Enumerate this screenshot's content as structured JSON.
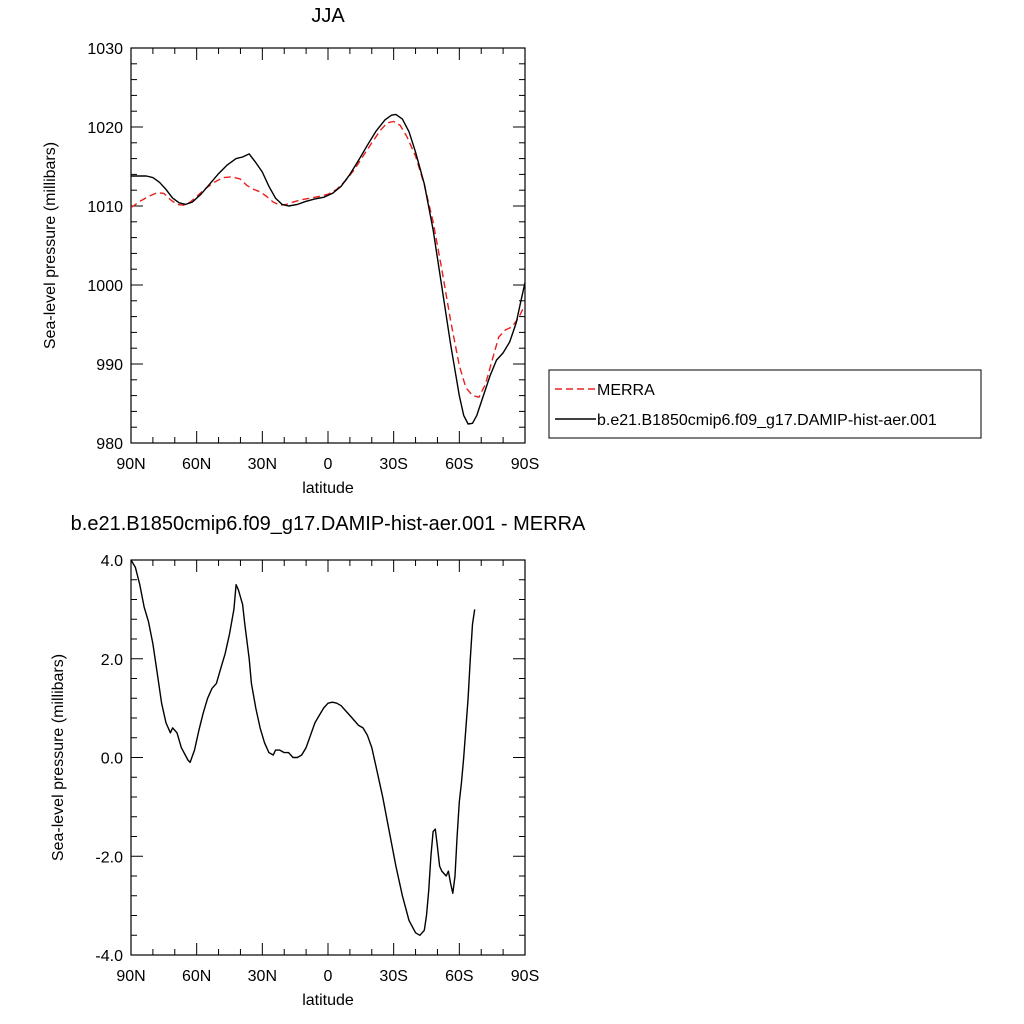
{
  "chart_data": [
    {
      "type": "line",
      "title": "JJA",
      "xlabel": "latitude",
      "ylabel": "Sea-level pressure (millibars)",
      "xlim": [
        90,
        -90
      ],
      "ylim": [
        980,
        1030
      ],
      "x_ticks": [
        90,
        60,
        30,
        0,
        -30,
        -60,
        -90
      ],
      "x_tick_labels": [
        "90N",
        "60N",
        "30N",
        "0",
        "30S",
        "60S",
        "90S"
      ],
      "y_ticks": [
        980,
        990,
        1000,
        1010,
        1020,
        1030
      ],
      "y_tick_labels": [
        "980",
        "990",
        "1000",
        "1010",
        "1020",
        "1030"
      ],
      "legend_position": "outside-right",
      "series": [
        {
          "name": "MERRA",
          "color": "#e8201e",
          "dashed": true,
          "points": [
            [
              90,
              1009.8
            ],
            [
              86,
              1010.6
            ],
            [
              82,
              1011.2
            ],
            [
              78,
              1011.7
            ],
            [
              75,
              1011.6
            ],
            [
              72,
              1010.8
            ],
            [
              69,
              1010.2
            ],
            [
              66,
              1010.1
            ],
            [
              63,
              1010.5
            ],
            [
              60,
              1011.2
            ],
            [
              56,
              1012.2
            ],
            [
              52,
              1013.0
            ],
            [
              48,
              1013.6
            ],
            [
              44,
              1013.7
            ],
            [
              40,
              1013.4
            ],
            [
              37,
              1012.6
            ],
            [
              34,
              1012.1
            ],
            [
              31,
              1011.8
            ],
            [
              28,
              1011.2
            ],
            [
              25,
              1010.5
            ],
            [
              22,
              1010.1
            ],
            [
              19,
              1010.2
            ],
            [
              16,
              1010.5
            ],
            [
              12,
              1010.8
            ],
            [
              8,
              1011.0
            ],
            [
              4,
              1011.2
            ],
            [
              0,
              1011.5
            ],
            [
              -4,
              1012.1
            ],
            [
              -8,
              1013.2
            ],
            [
              -12,
              1014.6
            ],
            [
              -16,
              1016.3
            ],
            [
              -20,
              1018.0
            ],
            [
              -24,
              1019.6
            ],
            [
              -27,
              1020.5
            ],
            [
              -30,
              1020.7
            ],
            [
              -33,
              1020.2
            ],
            [
              -36,
              1018.8
            ],
            [
              -40,
              1016.3
            ],
            [
              -44,
              1012.7
            ],
            [
              -48,
              1008.0
            ],
            [
              -52,
              1002.0
            ],
            [
              -56,
              995.5
            ],
            [
              -60,
              989.8
            ],
            [
              -63,
              987.0
            ],
            [
              -66,
              986.0
            ],
            [
              -69,
              985.8
            ],
            [
              -72,
              987.5
            ],
            [
              -75,
              990.5
            ],
            [
              -78,
              993.4
            ],
            [
              -81,
              994.3
            ],
            [
              -84,
              994.7
            ],
            [
              -87,
              995.8
            ],
            [
              -90,
              997.5
            ]
          ]
        },
        {
          "name": "b.e21.B1850cmip6.f09_g17.DAMIP-hist-aer.001",
          "color": "#000000",
          "dashed": false,
          "points": [
            [
              90,
              1013.8
            ],
            [
              86,
              1013.8
            ],
            [
              83,
              1013.8
            ],
            [
              80,
              1013.6
            ],
            [
              77,
              1013.0
            ],
            [
              74,
              1012.1
            ],
            [
              71,
              1011.0
            ],
            [
              68,
              1010.4
            ],
            [
              65,
              1010.2
            ],
            [
              62,
              1010.5
            ],
            [
              58,
              1011.5
            ],
            [
              54,
              1012.8
            ],
            [
              50,
              1014.1
            ],
            [
              46,
              1015.2
            ],
            [
              42,
              1016.0
            ],
            [
              39,
              1016.2
            ],
            [
              36,
              1016.6
            ],
            [
              33,
              1015.5
            ],
            [
              30,
              1014.3
            ],
            [
              27,
              1012.5
            ],
            [
              24,
              1011.0
            ],
            [
              21,
              1010.2
            ],
            [
              18,
              1010.0
            ],
            [
              14,
              1010.2
            ],
            [
              10,
              1010.6
            ],
            [
              6,
              1010.9
            ],
            [
              2,
              1011.1
            ],
            [
              -2,
              1011.6
            ],
            [
              -6,
              1012.5
            ],
            [
              -10,
              1014.0
            ],
            [
              -14,
              1015.8
            ],
            [
              -18,
              1017.7
            ],
            [
              -22,
              1019.5
            ],
            [
              -26,
              1020.9
            ],
            [
              -29,
              1021.5
            ],
            [
              -31,
              1021.6
            ],
            [
              -34,
              1021.0
            ],
            [
              -37,
              1019.4
            ],
            [
              -40,
              1016.8
            ],
            [
              -44,
              1012.8
            ],
            [
              -48,
              1007.0
            ],
            [
              -52,
              999.8
            ],
            [
              -56,
              992.5
            ],
            [
              -60,
              986.0
            ],
            [
              -62,
              983.5
            ],
            [
              -64,
              982.4
            ],
            [
              -66,
              982.5
            ],
            [
              -68,
              983.5
            ],
            [
              -71,
              986.0
            ],
            [
              -74,
              988.5
            ],
            [
              -77,
              990.5
            ],
            [
              -80,
              991.4
            ],
            [
              -83,
              992.8
            ],
            [
              -86,
              995.2
            ],
            [
              -88,
              997.8
            ],
            [
              -90,
              1000.3
            ]
          ]
        }
      ]
    },
    {
      "type": "line",
      "title": "b.e21.B1850cmip6.f09_g17.DAMIP-hist-aer.001 - MERRA",
      "xlabel": "latitude",
      "ylabel": "Sea-level pressure (millibars)",
      "xlim": [
        90,
        -90
      ],
      "ylim": [
        -4.0,
        4.0
      ],
      "x_ticks": [
        90,
        60,
        30,
        0,
        -30,
        -60,
        -90
      ],
      "x_tick_labels": [
        "90N",
        "60N",
        "30N",
        "0",
        "30S",
        "60S",
        "90S"
      ],
      "y_ticks": [
        -4.0,
        -2.0,
        0.0,
        2.0,
        4.0
      ],
      "y_tick_labels": [
        "-4.0",
        "-2.0",
        "0.0",
        "2.0",
        "4.0"
      ],
      "series": [
        {
          "color": "#000000",
          "dashed": false,
          "points": [
            [
              90,
              4.0
            ],
            [
              88,
              3.85
            ],
            [
              86,
              3.5
            ],
            [
              84,
              3.05
            ],
            [
              82,
              2.75
            ],
            [
              80,
              2.3
            ],
            [
              78,
              1.7
            ],
            [
              76,
              1.1
            ],
            [
              74,
              0.7
            ],
            [
              72,
              0.5
            ],
            [
              71,
              0.6
            ],
            [
              69,
              0.5
            ],
            [
              67,
              0.2
            ],
            [
              64,
              -0.05
            ],
            [
              63,
              -0.1
            ],
            [
              61,
              0.15
            ],
            [
              59,
              0.55
            ],
            [
              57,
              0.9
            ],
            [
              55,
              1.2
            ],
            [
              53,
              1.4
            ],
            [
              51,
              1.5
            ],
            [
              49,
              1.8
            ],
            [
              47,
              2.1
            ],
            [
              45,
              2.5
            ],
            [
              43,
              3.0
            ],
            [
              42,
              3.5
            ],
            [
              41,
              3.4
            ],
            [
              39,
              3.1
            ],
            [
              38,
              2.7
            ],
            [
              36,
              2.0
            ],
            [
              35,
              1.5
            ],
            [
              33,
              1.0
            ],
            [
              31,
              0.6
            ],
            [
              29,
              0.3
            ],
            [
              27,
              0.1
            ],
            [
              25,
              0.05
            ],
            [
              24,
              0.15
            ],
            [
              22,
              0.15
            ],
            [
              20,
              0.1
            ],
            [
              18,
              0.1
            ],
            [
              16,
              0.0
            ],
            [
              14,
              0.0
            ],
            [
              12,
              0.05
            ],
            [
              10,
              0.2
            ],
            [
              8,
              0.45
            ],
            [
              6,
              0.7
            ],
            [
              4,
              0.85
            ],
            [
              2,
              1.0
            ],
            [
              0,
              1.1
            ],
            [
              -2,
              1.12
            ],
            [
              -4,
              1.1
            ],
            [
              -6,
              1.05
            ],
            [
              -8,
              0.95
            ],
            [
              -10,
              0.85
            ],
            [
              -12,
              0.75
            ],
            [
              -14,
              0.65
            ],
            [
              -16,
              0.6
            ],
            [
              -18,
              0.45
            ],
            [
              -20,
              0.2
            ],
            [
              -22,
              -0.2
            ],
            [
              -25,
              -0.8
            ],
            [
              -28,
              -1.5
            ],
            [
              -31,
              -2.2
            ],
            [
              -34,
              -2.8
            ],
            [
              -37,
              -3.3
            ],
            [
              -40,
              -3.55
            ],
            [
              -42,
              -3.6
            ],
            [
              -44,
              -3.5
            ],
            [
              -45,
              -3.2
            ],
            [
              -46,
              -2.7
            ],
            [
              -47,
              -2.0
            ],
            [
              -48,
              -1.5
            ],
            [
              -49,
              -1.45
            ],
            [
              -50,
              -1.8
            ],
            [
              -51,
              -2.2
            ],
            [
              -52,
              -2.3
            ],
            [
              -54,
              -2.4
            ],
            [
              -55,
              -2.3
            ],
            [
              -56,
              -2.55
            ],
            [
              -57,
              -2.75
            ],
            [
              -58,
              -2.4
            ],
            [
              -59,
              -1.6
            ],
            [
              -60,
              -0.9
            ],
            [
              -61,
              -0.5
            ],
            [
              -62,
              0.0
            ],
            [
              -63,
              0.6
            ],
            [
              -64,
              1.2
            ],
            [
              -65,
              2.0
            ],
            [
              -66,
              2.7
            ],
            [
              -67,
              3.0
            ]
          ]
        }
      ]
    }
  ]
}
